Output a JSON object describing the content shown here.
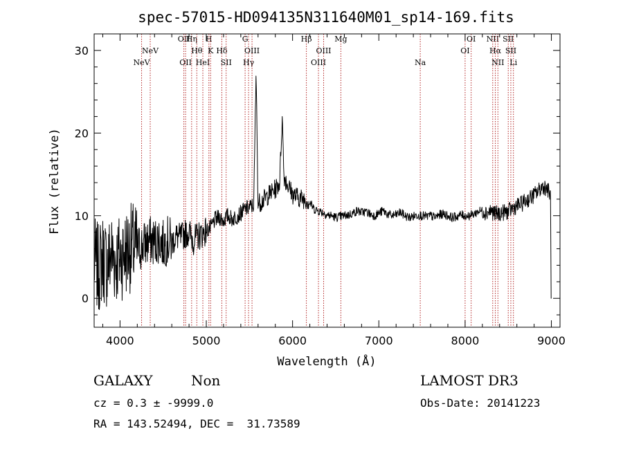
{
  "chart_data": {
    "type": "line",
    "title": "spec-57015-HD094135N311640M01_sp14-169.fits",
    "xlabel": "Wavelength (Å)",
    "ylabel": "Flux (relative)",
    "xlim": [
      3700,
      9100
    ],
    "ylim": [
      -3.5,
      32
    ],
    "xticks": [
      4000,
      5000,
      6000,
      7000,
      8000,
      9000
    ],
    "yticks": [
      0,
      10,
      20,
      30
    ],
    "grid": false,
    "series": [
      {
        "name": "flux",
        "x": [
          3700,
          3750,
          3800,
          3850,
          3900,
          3950,
          4000,
          4050,
          4100,
          4150,
          4200,
          4250,
          4300,
          4350,
          4400,
          4450,
          4500,
          4550,
          4600,
          4650,
          4700,
          4750,
          4800,
          4850,
          4900,
          4950,
          5000,
          5050,
          5100,
          5150,
          5200,
          5250,
          5300,
          5350,
          5400,
          5450,
          5500,
          5550,
          5577,
          5600,
          5650,
          5700,
          5750,
          5800,
          5850,
          5880,
          5900,
          5950,
          6000,
          6050,
          6100,
          6150,
          6200,
          6250,
          6300,
          6350,
          6400,
          6450,
          6500,
          6550,
          6600,
          6650,
          6700,
          6750,
          6800,
          6850,
          6900,
          6950,
          7000,
          7050,
          7100,
          7150,
          7200,
          7250,
          7300,
          7350,
          7400,
          7450,
          7500,
          7550,
          7600,
          7650,
          7700,
          7750,
          7800,
          7850,
          7900,
          7950,
          8000,
          8050,
          8100,
          8150,
          8200,
          8250,
          8300,
          8350,
          8400,
          8450,
          8500,
          8550,
          8600,
          8650,
          8700,
          8750,
          8800,
          8850,
          8900,
          8950,
          8990,
          9000
        ],
        "y": [
          4.5,
          3.5,
          5.0,
          4.0,
          5.5,
          4.5,
          5.0,
          5.5,
          6.0,
          6.2,
          6.0,
          6.3,
          6.7,
          7.0,
          6.8,
          7.2,
          6.5,
          7.0,
          6.8,
          7.5,
          7.3,
          7.8,
          8.0,
          7.0,
          7.5,
          7.8,
          8.2,
          8.5,
          9.5,
          9.8,
          9.4,
          10.0,
          9.6,
          9.9,
          10.3,
          10.8,
          11.0,
          11.3,
          27.5,
          11.5,
          11.8,
          12.3,
          12.8,
          13.2,
          14.0,
          22.0,
          14.8,
          13.6,
          12.6,
          12.3,
          12.1,
          12.0,
          11.6,
          10.8,
          10.6,
          10.4,
          10.1,
          10.0,
          9.8,
          9.9,
          10.0,
          10.1,
          10.3,
          10.6,
          10.4,
          10.5,
          10.2,
          10.0,
          10.3,
          10.6,
          10.2,
          10.0,
          10.1,
          10.4,
          10.0,
          9.8,
          9.9,
          10.1,
          10.0,
          9.9,
          10.0,
          9.8,
          10.1,
          10.2,
          10.0,
          9.8,
          9.9,
          10.1,
          10.0,
          10.0,
          10.2,
          10.5,
          10.6,
          10.4,
          10.6,
          10.2,
          10.3,
          10.4,
          10.5,
          10.9,
          11.2,
          11.4,
          11.8,
          12.1,
          12.5,
          13.0,
          13.6,
          13.3,
          12.5,
          0.0
        ]
      }
    ],
    "lines": [
      {
        "x": 4250,
        "label": "NeV",
        "row": 3
      },
      {
        "x": 4350,
        "label": "NeV",
        "row": 2
      },
      {
        "x": 4740,
        "label": "OII",
        "row": 1
      },
      {
        "x": 4760,
        "label": "OII",
        "row": 3
      },
      {
        "x": 4830,
        "label": "Hη",
        "row": 1
      },
      {
        "x": 4890,
        "label": "Hθ",
        "row": 2
      },
      {
        "x": 4960,
        "label": "HeI",
        "row": 3
      },
      {
        "x": 5030,
        "label": "H",
        "row": 1
      },
      {
        "x": 5050,
        "label": "K",
        "row": 2
      },
      {
        "x": 5180,
        "label": "Hδ",
        "row": 2
      },
      {
        "x": 5230,
        "label": "SII",
        "row": 3
      },
      {
        "x": 5450,
        "label": "G",
        "row": 1
      },
      {
        "x": 5490,
        "label": "Hγ",
        "row": 3
      },
      {
        "x": 5530,
        "label": "OIII",
        "row": 2
      },
      {
        "x": 6160,
        "label": "Hβ",
        "row": 1
      },
      {
        "x": 6300,
        "label": "OIII",
        "row": 3
      },
      {
        "x": 6360,
        "label": "OIII",
        "row": 2
      },
      {
        "x": 6560,
        "label": "Mg",
        "row": 1
      },
      {
        "x": 7480,
        "label": "Na",
        "row": 3
      },
      {
        "x": 8000,
        "label": "OI",
        "row": 2
      },
      {
        "x": 8070,
        "label": "OI",
        "row": 1
      },
      {
        "x": 8320,
        "label": "NII",
        "row": 1
      },
      {
        "x": 8350,
        "label": "Hα",
        "row": 2
      },
      {
        "x": 8380,
        "label": "NII",
        "row": 3
      },
      {
        "x": 8500,
        "label": "SII",
        "row": 1
      },
      {
        "x": 8530,
        "label": "SII",
        "row": 2
      },
      {
        "x": 8560,
        "label": "Li",
        "row": 3
      }
    ]
  },
  "info": {
    "class": "GALAXY",
    "subclass": "Non",
    "survey": "LAMOST DR3",
    "cz": "cz = 0.3 ± -9999.0",
    "obs_date": "Obs-Date: 20141223",
    "radec": "RA = 143.52494, DEC =  31.73589"
  },
  "colors": {
    "line": "#000000",
    "marker": "#b22222"
  }
}
